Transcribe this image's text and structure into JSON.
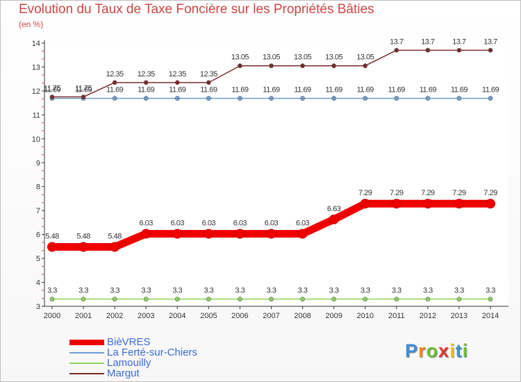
{
  "chart_data": {
    "type": "line",
    "title": "Evolution du Taux de Taxe Foncière sur les Propriétés Bâties",
    "ylabel": "(en %)",
    "xlabel": "",
    "ylim": [
      3,
      14
    ],
    "yticks": [
      3,
      4,
      5,
      6,
      7,
      8,
      9,
      10,
      11,
      12,
      13,
      14
    ],
    "categories": [
      "2000",
      "2001",
      "2002",
      "2003",
      "2004",
      "2005",
      "2006",
      "2007",
      "2008",
      "2009",
      "2010",
      "2011",
      "2012",
      "2013",
      "2014"
    ],
    "series": [
      {
        "name": "BièVRES",
        "color": "#ee0000",
        "values": [
          5.48,
          5.48,
          5.48,
          6.03,
          6.03,
          6.03,
          6.03,
          6.03,
          6.03,
          6.63,
          7.29,
          7.29,
          7.29,
          7.29,
          7.29
        ],
        "labels": [
          "5.48",
          "5.48",
          "5.48",
          "6.03",
          "6.03",
          "6.03",
          "6.03",
          "6.03",
          "6.03",
          "6.63",
          "7.29",
          "7.29",
          "7.29",
          "7.29",
          "7.29"
        ]
      },
      {
        "name": "La Ferté-sur-Chiers",
        "color": "#6a9ed4",
        "values": [
          11.69,
          11.69,
          11.69,
          11.69,
          11.69,
          11.69,
          11.69,
          11.69,
          11.69,
          11.69,
          11.69,
          11.69,
          11.69,
          11.69,
          11.69
        ],
        "labels": [
          "11.69",
          "11.69",
          "11.69",
          "11.69",
          "11.69",
          "11.69",
          "11.69",
          "11.69",
          "11.69",
          "11.69",
          "11.69",
          "11.69",
          "11.69",
          "11.69",
          "11.69"
        ]
      },
      {
        "name": "Lamouilly",
        "color": "#8cd45e",
        "values": [
          3.3,
          3.3,
          3.3,
          3.3,
          3.3,
          3.3,
          3.3,
          3.3,
          3.3,
          3.3,
          3.3,
          3.3,
          3.3,
          3.3,
          3.3
        ],
        "labels": [
          "3.3",
          "3.3",
          "3.3",
          "3.3",
          "3.3",
          "3.3",
          "3.3",
          "3.3",
          "3.3",
          "3.3",
          "3.3",
          "3.3",
          "3.3",
          "3.3",
          "3.3"
        ]
      },
      {
        "name": "Margut",
        "color": "#7a2a2a",
        "values": [
          11.75,
          11.75,
          12.35,
          12.35,
          12.35,
          12.35,
          13.05,
          13.05,
          13.05,
          13.05,
          13.05,
          13.7,
          13.7,
          13.7,
          13.7
        ],
        "labels": [
          "11.75",
          "11.75",
          "12.35",
          "12.35",
          "12.35",
          "12.35",
          "13.05",
          "13.05",
          "13.05",
          "13.05",
          "13.05",
          "13.7",
          "13.7",
          "13.7",
          "13.7"
        ]
      }
    ],
    "legend_position": "bottom-left"
  },
  "logo": {
    "letters": [
      "P",
      "r",
      "o",
      "x",
      "i",
      "t",
      "i"
    ],
    "colors": [
      "#3d8fd6",
      "#f08a1c",
      "#6cbf3a",
      "#e2342b",
      "#f2c018",
      "#3d8fd6",
      "#6cbf3a"
    ]
  }
}
